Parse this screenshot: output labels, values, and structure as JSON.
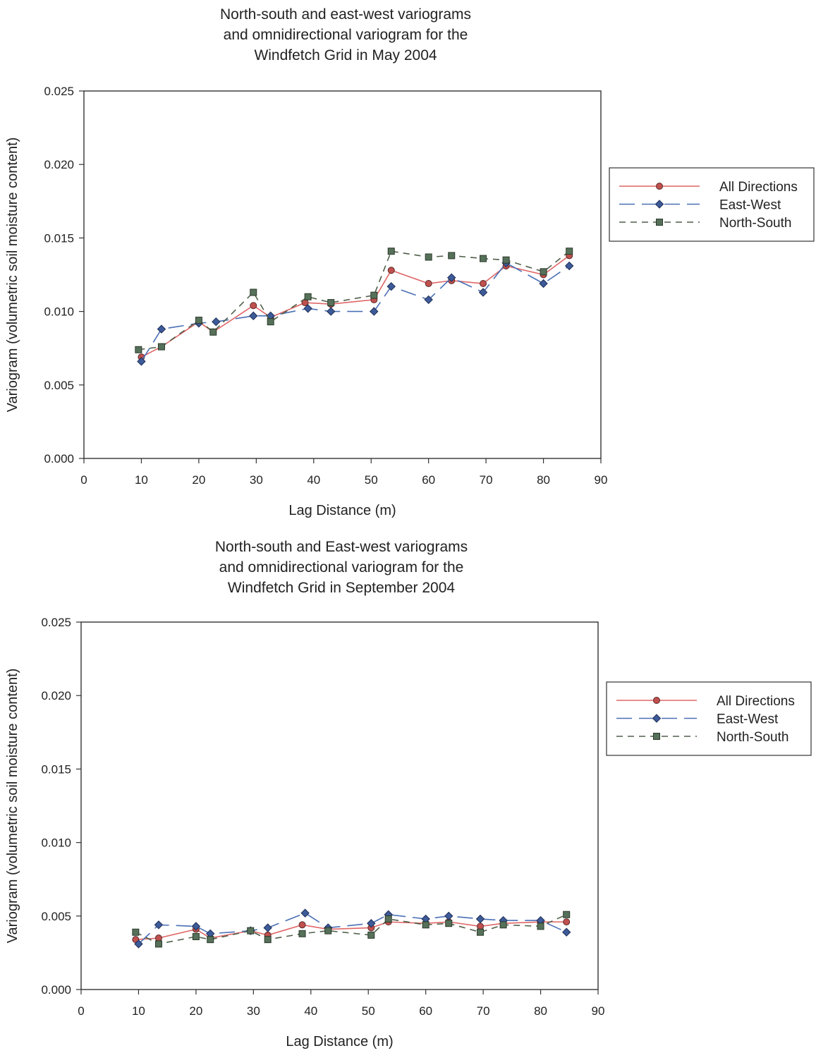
{
  "chart_data": [
    {
      "type": "line",
      "title": "North-south and east-west variograms and omnidirectional variogram for the Windfetch Grid in May 2004",
      "title_lines": [
        "North-south and east-west variograms",
        "and omnidirectional variogram for the",
        "Windfetch Grid in May 2004"
      ],
      "xlabel": "Lag Distance (m)",
      "ylabel": "Variogram (volumetric soil moisture content)",
      "xlim": [
        0,
        90
      ],
      "ylim": [
        0,
        0.025
      ],
      "xticks": [
        "0",
        "10",
        "20",
        "30",
        "40",
        "50",
        "60",
        "70",
        "80",
        "90"
      ],
      "yticks": [
        "0.000",
        "0.005",
        "0.010",
        "0.015",
        "0.020",
        "0.025"
      ],
      "grid": false,
      "legend_position": "right",
      "series": [
        {
          "name": "All Directions",
          "color": "#e06666",
          "marker": "circle",
          "dash": "solid",
          "x": [
            10,
            13.5,
            20,
            22.5,
            29.5,
            32.5,
            38.5,
            43,
            50.5,
            53.5,
            60,
            64,
            69.5,
            73.5,
            80,
            84.5
          ],
          "y": [
            0.0069,
            0.0076,
            0.0093,
            0.0086,
            0.0104,
            0.0096,
            0.0106,
            0.0105,
            0.0108,
            0.0128,
            0.0119,
            0.0121,
            0.0119,
            0.0131,
            0.0125,
            0.0138
          ]
        },
        {
          "name": "East-West",
          "color": "#4a6fb5",
          "marker": "diamond",
          "dash": "long",
          "x": [
            10,
            13.5,
            20,
            23,
            29.5,
            32.5,
            39,
            43,
            50.5,
            53.5,
            60,
            64,
            69.5,
            73.5,
            80,
            84.5
          ],
          "y": [
            0.0066,
            0.0088,
            0.0092,
            0.0093,
            0.0097,
            0.0097,
            0.0102,
            0.01,
            0.01,
            0.0117,
            0.0108,
            0.0123,
            0.0113,
            0.0133,
            0.0119,
            0.0131
          ]
        },
        {
          "name": "North-South",
          "color": "#4f5f4a",
          "marker": "square",
          "dash": "short",
          "x": [
            9.5,
            13.5,
            20,
            22.5,
            29.5,
            32.5,
            39,
            43,
            50.5,
            53.5,
            60,
            64,
            69.5,
            73.5,
            80,
            84.5
          ],
          "y": [
            0.0074,
            0.0076,
            0.0094,
            0.0086,
            0.0113,
            0.0093,
            0.011,
            0.0106,
            0.0111,
            0.0141,
            0.0137,
            0.0138,
            0.0136,
            0.0135,
            0.0127,
            0.0141
          ]
        }
      ]
    },
    {
      "type": "line",
      "title": "North-south and East-west variograms and omnidirectional variogram for the Windfetch Grid in September 2004",
      "title_lines": [
        "North-south and East-west variograms",
        "and omnidirectional variogram for the",
        "Windfetch Grid in September 2004"
      ],
      "xlabel": "Lag Distance (m)",
      "ylabel": "Variogram (volumetric soil moisture content)",
      "xlim": [
        0,
        90
      ],
      "ylim": [
        0,
        0.025
      ],
      "xticks": [
        "0",
        "10",
        "20",
        "30",
        "40",
        "50",
        "60",
        "70",
        "80",
        "90"
      ],
      "yticks": [
        "0.000",
        "0.005",
        "0.010",
        "0.015",
        "0.020",
        "0.025"
      ],
      "grid": false,
      "legend_position": "right",
      "series": [
        {
          "name": "All Directions",
          "color": "#e06666",
          "marker": "circle",
          "dash": "solid",
          "x": [
            9.5,
            13.5,
            20,
            22.5,
            29.5,
            32.5,
            38.5,
            43,
            50.5,
            53.5,
            60,
            64,
            69.5,
            73.5,
            80,
            84.5
          ],
          "y": [
            0.0034,
            0.0035,
            0.0041,
            0.0035,
            0.004,
            0.0037,
            0.0044,
            0.0041,
            0.0042,
            0.0046,
            0.0045,
            0.0046,
            0.0043,
            0.0045,
            0.0046,
            0.0046
          ]
        },
        {
          "name": "East-West",
          "color": "#4a6fb5",
          "marker": "diamond",
          "dash": "long",
          "x": [
            10,
            13.5,
            20,
            22.5,
            29.5,
            32.5,
            39,
            43,
            50.5,
            53.5,
            60,
            64,
            69.5,
            73.5,
            80,
            84.5
          ],
          "y": [
            0.0031,
            0.0044,
            0.0043,
            0.0038,
            0.004,
            0.0042,
            0.0052,
            0.0042,
            0.0045,
            0.0051,
            0.0048,
            0.005,
            0.0048,
            0.0047,
            0.0047,
            0.0039
          ]
        },
        {
          "name": "North-South",
          "color": "#4f5f4a",
          "marker": "square",
          "dash": "short",
          "x": [
            9.5,
            13.5,
            20,
            22.5,
            29.5,
            32.5,
            38.5,
            43,
            50.5,
            53.5,
            60,
            64,
            69.5,
            73.5,
            80,
            84.5
          ],
          "y": [
            0.0039,
            0.0031,
            0.0036,
            0.0034,
            0.004,
            0.0034,
            0.0038,
            0.004,
            0.0037,
            0.0048,
            0.0044,
            0.0045,
            0.0039,
            0.0044,
            0.0043,
            0.0051
          ]
        }
      ]
    }
  ]
}
